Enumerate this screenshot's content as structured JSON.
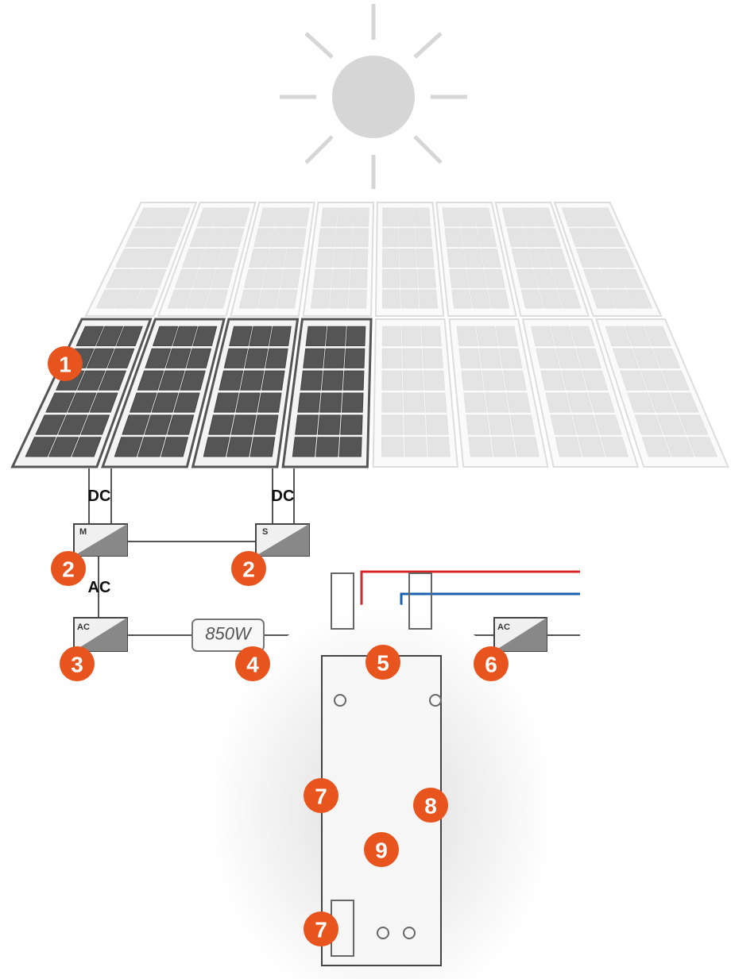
{
  "labels": {
    "dc_left": "DC",
    "dc_right": "DC",
    "inverter_master": "M",
    "inverter_slave": "S",
    "ac_line": "AC",
    "switch_left": "AC",
    "meter": "850W",
    "switch_right": "AC"
  },
  "badges": [
    "1",
    "2",
    "2",
    "3",
    "4",
    "5",
    "6",
    "7",
    "8",
    "9",
    "7"
  ]
}
